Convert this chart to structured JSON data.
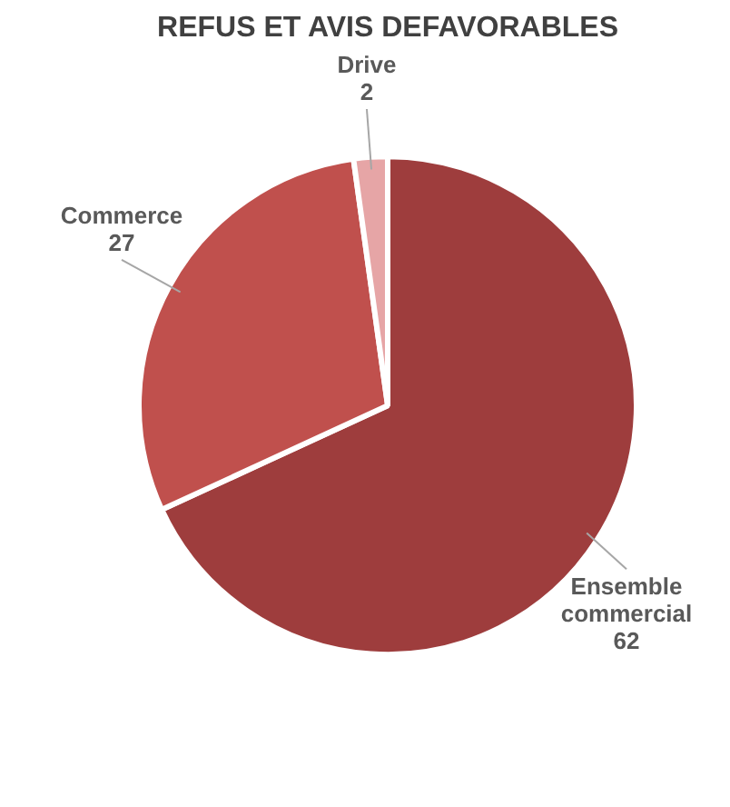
{
  "chart_data": {
    "type": "pie",
    "title": "REFUS ET AVIS DEFAVORABLES",
    "categories": [
      "Ensemble commercial",
      "Commerce",
      "Drive"
    ],
    "values": [
      62,
      27,
      2
    ],
    "colors": [
      "#9e3d3d",
      "#c0504d",
      "#e6a5a6"
    ],
    "data_labels": true,
    "legend": false
  }
}
